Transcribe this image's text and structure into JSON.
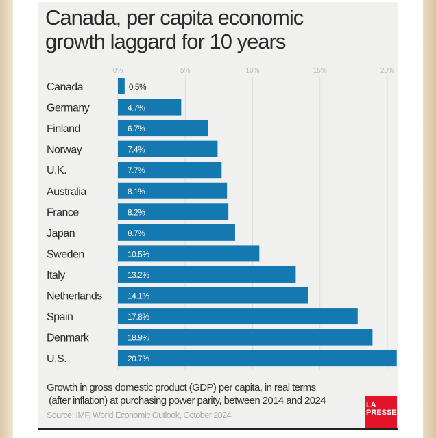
{
  "chart_data": {
    "type": "bar",
    "orientation": "horizontal",
    "title": "Canada, per capita economic growth laggard for 10 years",
    "categories": [
      "Canada",
      "Germany",
      "Finland",
      "Norway",
      "U.K.",
      "Australia",
      "France",
      "Japan",
      "Sweden",
      "Italy",
      "Netherlands",
      "Spain",
      "Denmark",
      "U.S."
    ],
    "values": [
      0.5,
      4.7,
      6.7,
      7.4,
      7.7,
      8.1,
      8.2,
      8.7,
      10.5,
      13.2,
      14.1,
      17.8,
      18.9,
      20.7
    ],
    "labels": [
      "0.5%",
      "4.7%",
      "6.7%",
      "7.4%",
      "7.7%",
      "8.1%",
      "8.2%",
      "8.7%",
      "10.5%",
      "13.2%",
      "14.1%",
      "17.8%",
      "18.9%",
      "20.7%"
    ],
    "xticks": [
      0,
      5,
      10,
      15,
      20
    ],
    "xtick_labels": [
      "0%",
      "5%",
      "10%",
      "15%",
      "20%"
    ],
    "xlim": [
      0,
      20.7
    ],
    "grid": true,
    "bar_color": "#1479b0",
    "caption": "Growth in gross domestic product (GDP) per capita, in real terms (after inflation) at purchasing power parity, between 2014 and 2024",
    "caption_lines": [
      "Growth in gross domestic product (GDP) per capita, in real terms",
      "(after inflation) at purchasing power parity, between 2014 and 2024"
    ],
    "source": "Source: IMF, World Economic Outlook, October 2024"
  },
  "title_lines": [
    "Canada, per capita economic",
    "growth laggard for 10 years"
  ],
  "logo": {
    "line1": "LA",
    "line2": "PRESSE",
    "color": "#e3132a"
  }
}
